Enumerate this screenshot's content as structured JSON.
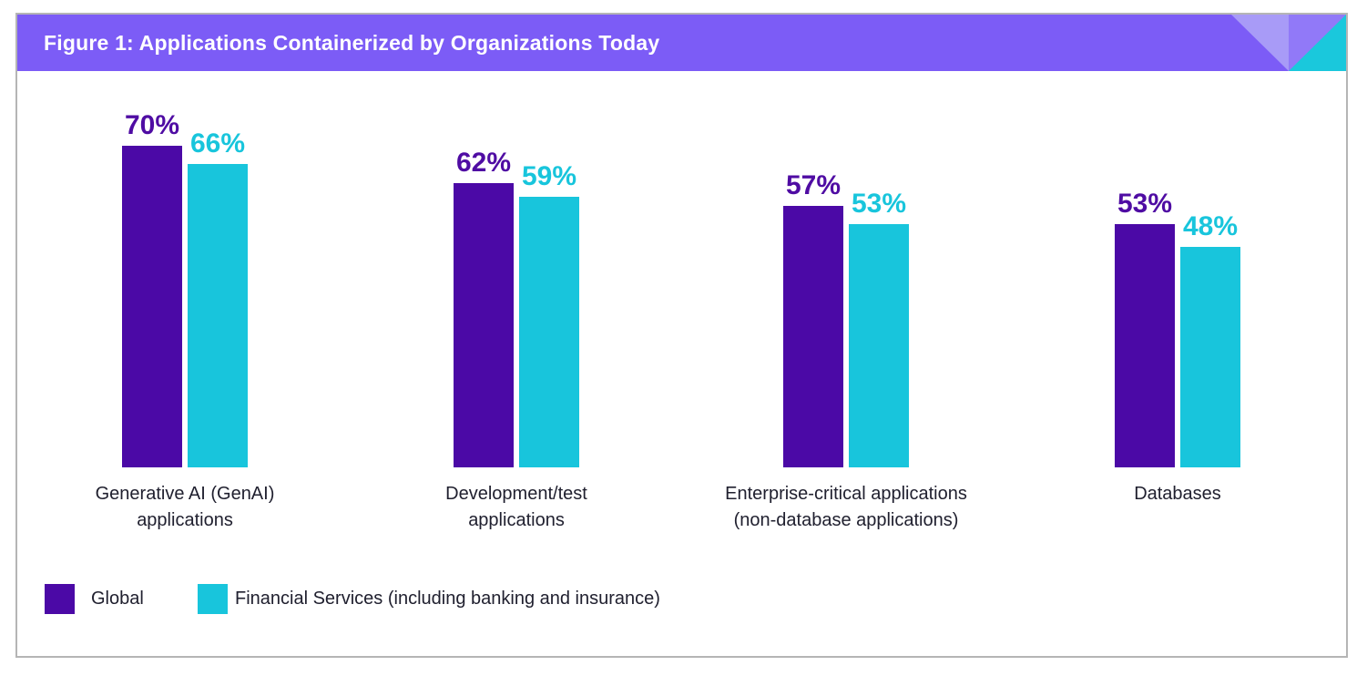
{
  "header": {
    "title": "Figure 1: Applications Containerized by Organizations Today"
  },
  "chart_data": {
    "type": "bar",
    "title": "Figure 1: Applications Containerized by Organizations Today",
    "categories": [
      {
        "label": "Generative AI (GenAI) applications",
        "lines": [
          "Generative AI (GenAI)",
          "applications"
        ]
      },
      {
        "label": "Development/test applications",
        "lines": [
          "Development/test",
          "applications"
        ]
      },
      {
        "label": "Enterprise-critical applications (non-database applications)",
        "lines": [
          "Enterprise-critical applications",
          "(non-database applications)"
        ]
      },
      {
        "label": "Databases",
        "lines": [
          "Databases"
        ]
      }
    ],
    "series": [
      {
        "name": "Global",
        "values": [
          70,
          62,
          57,
          53
        ],
        "color": "#4B09A6",
        "label_color": "#4F0CA3"
      },
      {
        "name": "Financial Services (including banking and insurance)",
        "values": [
          66,
          59,
          53,
          48
        ],
        "color": "#18C5DC",
        "label_color": "#18C5DC"
      }
    ],
    "value_suffix": "%",
    "value_labels_shown": true,
    "ylim": [
      0,
      100
    ],
    "grid": false,
    "legend_position": "bottom"
  },
  "legend": {
    "items": [
      {
        "label": "Global",
        "color": "#4B09A6"
      },
      {
        "label": "Financial Services (including banking and insurance)",
        "color": "#18C5DC"
      }
    ]
  },
  "colors": {
    "header_purple": "#7C5CF6",
    "deco_light_purple": "#9179F8",
    "deco_lavender": "#A89BF7",
    "deco_cyan": "#1AC8DC",
    "bar_purple": "#4B09A6",
    "bar_cyan": "#18C5DC",
    "value_label_purple": "#4F0CA3",
    "value_label_cyan": "#18C5DC",
    "text_dark": "#20202F",
    "border_gray": "#B5B5B5",
    "background": "#FFFFFF"
  }
}
